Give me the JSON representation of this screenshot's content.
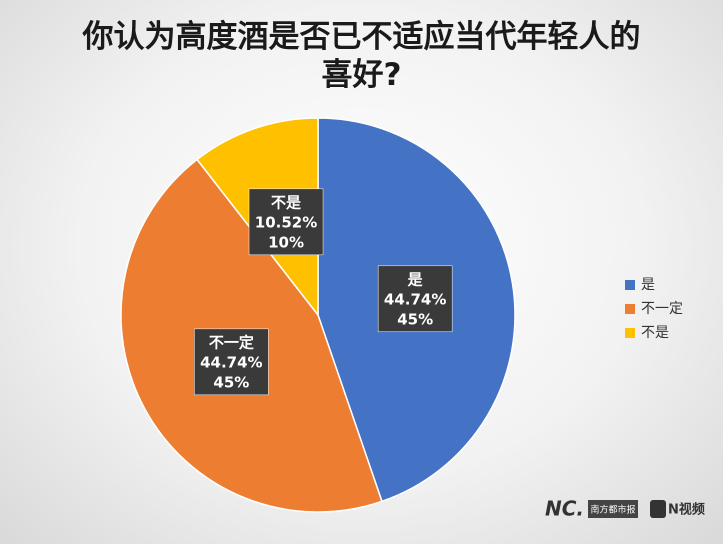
{
  "chart_data": {
    "type": "pie",
    "title": "你认为高度酒是否已不适应当代年轻人的喜好?",
    "categories": [
      "是",
      "不一定",
      "不是"
    ],
    "values": [
      44.74,
      44.74,
      10.52
    ],
    "value_labels": [
      [
        "44.74%",
        "45%"
      ],
      [
        "44.74%",
        "45%"
      ],
      [
        "10.52%",
        "10%"
      ]
    ],
    "colors": [
      "#4472c4",
      "#ed7d31",
      "#ffc000"
    ],
    "legend": "right"
  },
  "watermarks": [
    "NC.",
    "南方都市报",
    "N视频"
  ]
}
